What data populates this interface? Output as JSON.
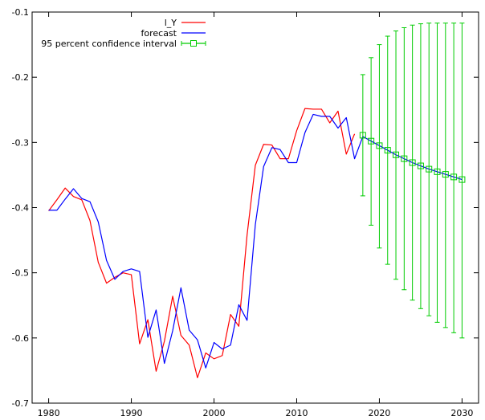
{
  "chart_data": {
    "type": "line",
    "xlim": [
      1978,
      2032
    ],
    "ylim": [
      -0.7,
      -0.1
    ],
    "x_ticks": [
      1980,
      1990,
      2000,
      2010,
      2020,
      2030
    ],
    "x_tick_labels": [
      "1980",
      "1990",
      "2000",
      "2010",
      "2020",
      "2030"
    ],
    "y_ticks": [
      -0.1,
      -0.2,
      -0.3,
      -0.4,
      -0.5,
      -0.6,
      -0.7
    ],
    "y_tick_labels": [
      "-0.1",
      "-0.2",
      "-0.3",
      "-0.4",
      "-0.5",
      "-0.6",
      "-0.7"
    ],
    "grid": false,
    "legend_position": "top-left",
    "series": [
      {
        "name": "l_Y",
        "color": "#ff0000",
        "x": [
          1980,
          1981,
          1982,
          1983,
          1984,
          1985,
          1986,
          1987,
          1988,
          1989,
          1990,
          1991,
          1992,
          1993,
          1994,
          1995,
          1996,
          1997,
          1998,
          1999,
          2000,
          2001,
          2002,
          2003,
          2004,
          2005,
          2006,
          2007,
          2008,
          2009,
          2010,
          2011,
          2012,
          2013,
          2014,
          2015,
          2016,
          2017
        ],
        "values": [
          -0.405,
          -0.388,
          -0.37,
          -0.383,
          -0.388,
          -0.42,
          -0.484,
          -0.516,
          -0.507,
          -0.5,
          -0.503,
          -0.609,
          -0.572,
          -0.651,
          -0.605,
          -0.536,
          -0.596,
          -0.611,
          -0.661,
          -0.623,
          -0.632,
          -0.627,
          -0.564,
          -0.582,
          -0.442,
          -0.335,
          -0.303,
          -0.304,
          -0.325,
          -0.325,
          -0.282,
          -0.248,
          -0.249,
          -0.249,
          -0.27,
          -0.252,
          -0.318,
          -0.287
        ]
      },
      {
        "name": "forecast",
        "color": "#0000ff",
        "x": [
          1980,
          1981,
          1982,
          1983,
          1984,
          1985,
          1986,
          1987,
          1988,
          1989,
          1990,
          1991,
          1992,
          1993,
          1994,
          1995,
          1996,
          1997,
          1998,
          1999,
          2000,
          2001,
          2002,
          2003,
          2004,
          2005,
          2006,
          2007,
          2008,
          2009,
          2010,
          2011,
          2012,
          2013,
          2014,
          2015,
          2016,
          2017,
          2018,
          2019,
          2020,
          2021,
          2022,
          2023,
          2024,
          2025,
          2026,
          2027,
          2028,
          2029,
          2030
        ],
        "values": [
          -0.404,
          -0.404,
          -0.387,
          -0.371,
          -0.386,
          -0.391,
          -0.422,
          -0.481,
          -0.51,
          -0.498,
          -0.494,
          -0.498,
          -0.599,
          -0.557,
          -0.639,
          -0.589,
          -0.523,
          -0.588,
          -0.603,
          -0.646,
          -0.607,
          -0.617,
          -0.611,
          -0.549,
          -0.573,
          -0.426,
          -0.337,
          -0.308,
          -0.311,
          -0.331,
          -0.331,
          -0.285,
          -0.257,
          -0.26,
          -0.26,
          -0.278,
          -0.262,
          -0.325,
          -0.291,
          -0.298,
          -0.305,
          -0.312,
          -0.319,
          -0.325,
          -0.331,
          -0.336,
          -0.341,
          -0.345,
          -0.349,
          -0.353,
          -0.357
        ]
      },
      {
        "name": "95 percent confidence interval",
        "color": "#00cc00",
        "x": [
          2018,
          2019,
          2020,
          2021,
          2022,
          2023,
          2024,
          2025,
          2026,
          2027,
          2028,
          2029,
          2030
        ],
        "center": [
          -0.289,
          -0.298,
          -0.305,
          -0.312,
          -0.319,
          -0.325,
          -0.331,
          -0.336,
          -0.341,
          -0.345,
          -0.349,
          -0.353,
          -0.357
        ],
        "lower": [
          -0.382,
          -0.427,
          -0.462,
          -0.487,
          -0.51,
          -0.526,
          -0.542,
          -0.555,
          -0.566,
          -0.576,
          -0.584,
          -0.592,
          -0.6
        ],
        "upper": [
          -0.196,
          -0.17,
          -0.15,
          -0.137,
          -0.129,
          -0.124,
          -0.12,
          -0.118,
          -0.117,
          -0.117,
          -0.117,
          -0.117,
          -0.117
        ]
      }
    ]
  }
}
